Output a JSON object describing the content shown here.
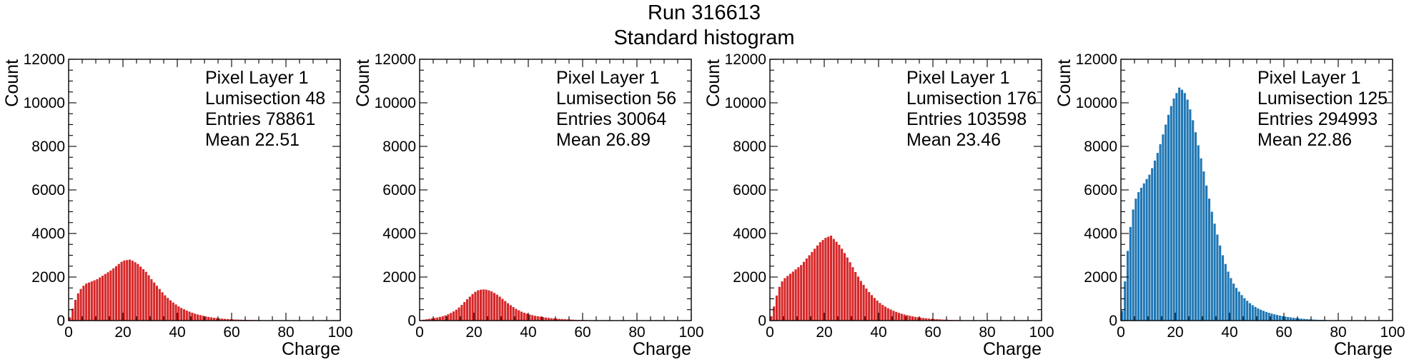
{
  "figure": {
    "title": "Run 316613",
    "subtitle": "Standard histogram"
  },
  "chart_data": [
    {
      "type": "bar",
      "xlabel": "Charge",
      "ylabel": "Count",
      "xlim": [
        0,
        100
      ],
      "ylim": [
        0,
        12000
      ],
      "xticks": [
        0,
        20,
        40,
        60,
        80,
        100
      ],
      "yticks": [
        0,
        2000,
        4000,
        6000,
        8000,
        10000,
        12000
      ],
      "bar_color": "#d62728",
      "bin_start": 0,
      "bin_width": 1,
      "annotation": [
        "Pixel Layer 1",
        "Lumisection 48",
        "Entries 78861",
        "Mean 22.51"
      ],
      "values": [
        150,
        550,
        950,
        1250,
        1450,
        1600,
        1700,
        1750,
        1800,
        1850,
        1900,
        1980,
        2060,
        2140,
        2220,
        2300,
        2400,
        2500,
        2600,
        2700,
        2760,
        2780,
        2800,
        2750,
        2680,
        2600,
        2480,
        2360,
        2240,
        2080,
        1900,
        1750,
        1600,
        1450,
        1300,
        1160,
        1040,
        930,
        830,
        740,
        650,
        580,
        520,
        460,
        410,
        360,
        320,
        280,
        250,
        220,
        190,
        170,
        150,
        130,
        115,
        100,
        90,
        80,
        70,
        60,
        55,
        50,
        45,
        40,
        35,
        32,
        30,
        28,
        25,
        22,
        20,
        18,
        16,
        14,
        12,
        10,
        9,
        8,
        7,
        6,
        5,
        5,
        4,
        4,
        3,
        3,
        3,
        2,
        2,
        2,
        2,
        2,
        1,
        1,
        1,
        1,
        1,
        1,
        0,
        0
      ]
    },
    {
      "type": "bar",
      "xlabel": "Charge",
      "ylabel": "Count",
      "xlim": [
        0,
        100
      ],
      "ylim": [
        0,
        12000
      ],
      "xticks": [
        0,
        20,
        40,
        60,
        80,
        100
      ],
      "yticks": [
        0,
        2000,
        4000,
        6000,
        8000,
        10000,
        12000
      ],
      "bar_color": "#d62728",
      "bin_start": 0,
      "bin_width": 1,
      "annotation": [
        "Pixel Layer 1",
        "Lumisection 56",
        "Entries 30064",
        "Mean 26.89"
      ],
      "values": [
        20,
        40,
        60,
        80,
        100,
        120,
        140,
        170,
        200,
        240,
        290,
        350,
        420,
        500,
        600,
        720,
        850,
        980,
        1100,
        1220,
        1320,
        1390,
        1420,
        1430,
        1420,
        1390,
        1340,
        1270,
        1190,
        1100,
        1000,
        900,
        800,
        710,
        620,
        540,
        470,
        410,
        360,
        320,
        280,
        250,
        220,
        200,
        180,
        160,
        140,
        125,
        110,
        100,
        90,
        80,
        70,
        62,
        55,
        48,
        42,
        37,
        32,
        28,
        25,
        22,
        19,
        17,
        15,
        13,
        11,
        10,
        9,
        8,
        7,
        6,
        5,
        5,
        4,
        4,
        3,
        3,
        2,
        2,
        2,
        2,
        1,
        1,
        1,
        1,
        1,
        1,
        0,
        0,
        0,
        0,
        0,
        0,
        0,
        0,
        0,
        0,
        0,
        0
      ]
    },
    {
      "type": "bar",
      "xlabel": "Charge",
      "ylabel": "Count",
      "xlim": [
        0,
        100
      ],
      "ylim": [
        0,
        12000
      ],
      "xticks": [
        0,
        20,
        40,
        60,
        80,
        100
      ],
      "yticks": [
        0,
        2000,
        4000,
        6000,
        8000,
        10000,
        12000
      ],
      "bar_color": "#d62728",
      "bin_start": 0,
      "bin_width": 1,
      "annotation": [
        "Pixel Layer 1",
        "Lumisection 176",
        "Entries 103598",
        "Mean 23.46"
      ],
      "values": [
        200,
        650,
        1150,
        1550,
        1800,
        1950,
        2050,
        2150,
        2250,
        2350,
        2450,
        2550,
        2700,
        2850,
        3000,
        3150,
        3300,
        3450,
        3600,
        3700,
        3800,
        3850,
        3900,
        3750,
        3620,
        3480,
        3300,
        3100,
        2900,
        2680,
        2450,
        2230,
        2020,
        1820,
        1640,
        1470,
        1310,
        1170,
        1040,
        920,
        810,
        720,
        640,
        570,
        510,
        450,
        400,
        355,
        315,
        280,
        250,
        220,
        195,
        172,
        152,
        135,
        120,
        105,
        92,
        80,
        70,
        62,
        55,
        48,
        42,
        37,
        32,
        28,
        24,
        21,
        18,
        16,
        14,
        12,
        10,
        9,
        8,
        7,
        6,
        5,
        4,
        4,
        3,
        3,
        2,
        2,
        2,
        2,
        1,
        1,
        1,
        1,
        1,
        1,
        0,
        0,
        0,
        0,
        0,
        0
      ]
    },
    {
      "type": "bar",
      "xlabel": "Charge",
      "ylabel": "Count",
      "xlim": [
        0,
        100
      ],
      "ylim": [
        0,
        12000
      ],
      "xticks": [
        0,
        20,
        40,
        60,
        80,
        100
      ],
      "yticks": [
        0,
        2000,
        4000,
        6000,
        8000,
        10000,
        12000
      ],
      "bar_color": "#1f77b4",
      "bin_start": 0,
      "bin_width": 1,
      "annotation": [
        "Pixel Layer 1",
        "Lumisection 125",
        "Entries 294993",
        "Mean 22.86"
      ],
      "values": [
        450,
        1800,
        3200,
        4300,
        5100,
        5600,
        5900,
        6100,
        6300,
        6500,
        6700,
        7000,
        7350,
        7700,
        8100,
        8550,
        9000,
        9450,
        9850,
        10200,
        10450,
        10700,
        10600,
        10450,
        10150,
        9700,
        9200,
        8650,
        8050,
        7450,
        6850,
        6200,
        5600,
        5000,
        4450,
        3950,
        3450,
        3000,
        2600,
        2250,
        1950,
        1700,
        1500,
        1330,
        1170,
        1030,
        910,
        800,
        710,
        630,
        560,
        500,
        450,
        400,
        360,
        325,
        290,
        260,
        230,
        205,
        185,
        165,
        147,
        130,
        115,
        100,
        88,
        77,
        67,
        58,
        50,
        43,
        37,
        32,
        28,
        24,
        21,
        18,
        15,
        13,
        11,
        9,
        8,
        7,
        6,
        5,
        4,
        4,
        3,
        3,
        2,
        2,
        2,
        1,
        1,
        1,
        1,
        1,
        1,
        1
      ]
    }
  ]
}
